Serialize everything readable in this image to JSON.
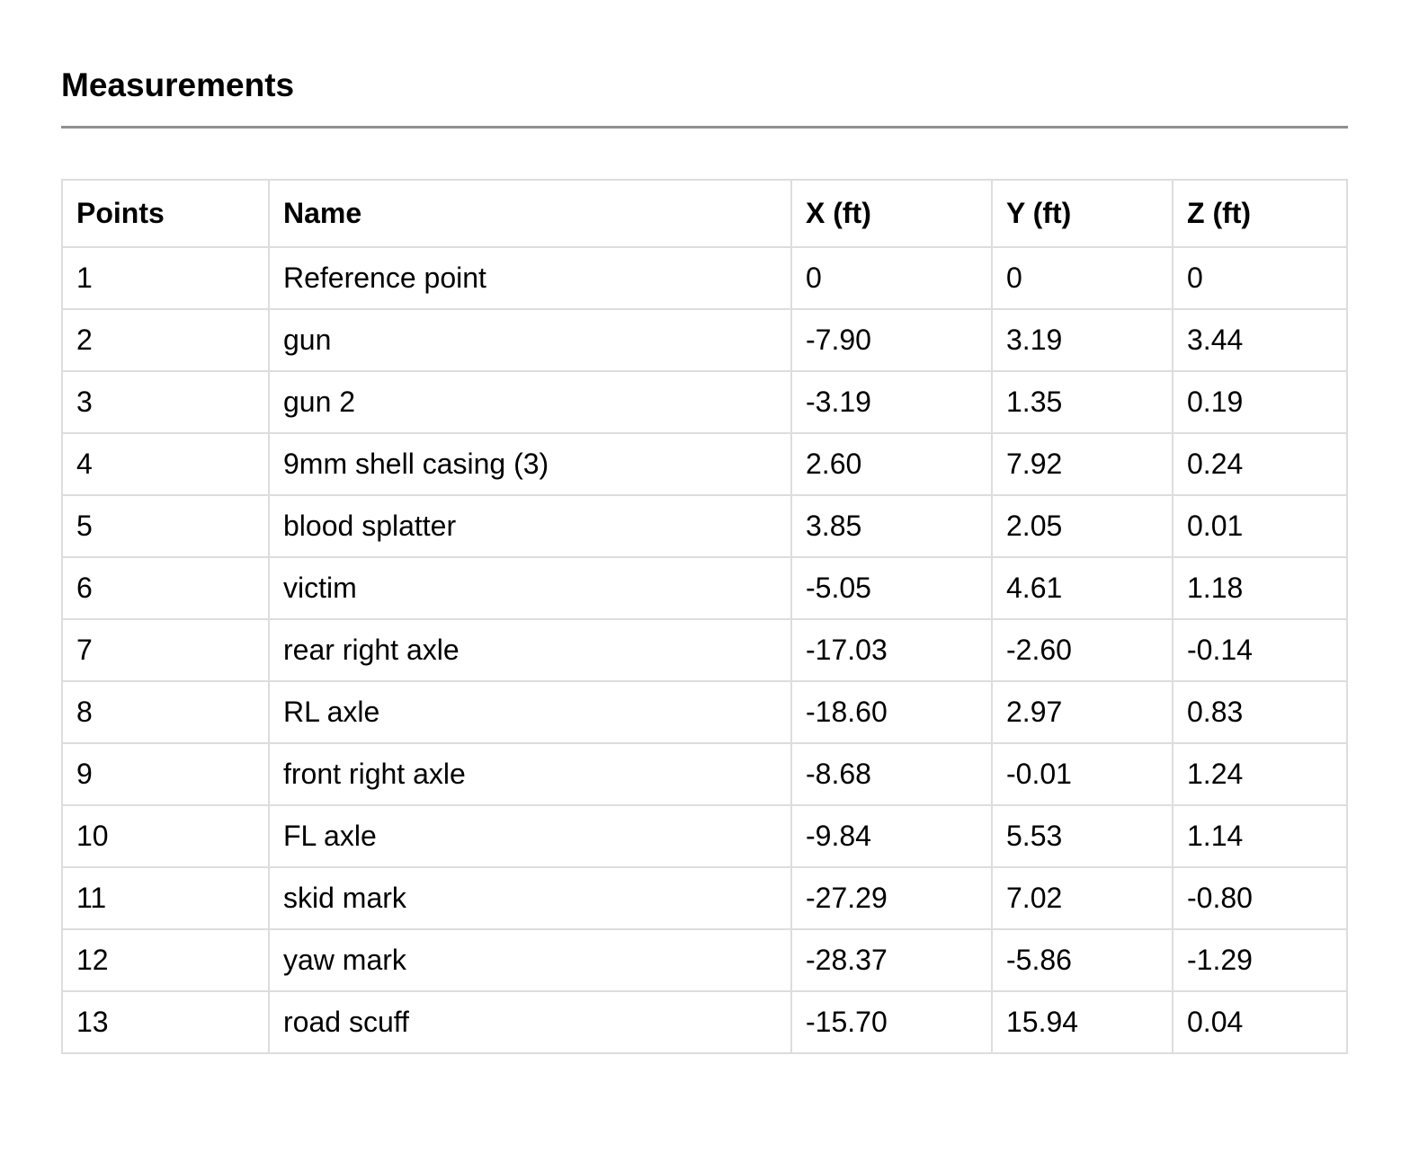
{
  "page": {
    "title": "Measurements"
  },
  "colors": {
    "border": "#dddddd",
    "rule": "#909090",
    "text": "#000000",
    "background": "#ffffff"
  },
  "table": {
    "columns": [
      "Points",
      "Name",
      "X (ft)",
      "Y (ft)",
      "Z (ft)"
    ],
    "column_keys": [
      "points",
      "name",
      "x",
      "y",
      "z"
    ],
    "rows": [
      [
        "1",
        "Reference point",
        "0",
        "0",
        "0"
      ],
      [
        "2",
        "gun",
        "-7.90",
        "3.19",
        "3.44"
      ],
      [
        "3",
        "gun 2",
        "-3.19",
        "1.35",
        "0.19"
      ],
      [
        "4",
        "9mm shell casing (3)",
        "2.60",
        "7.92",
        "0.24"
      ],
      [
        "5",
        "blood splatter",
        "3.85",
        "2.05",
        "0.01"
      ],
      [
        "6",
        "victim",
        "-5.05",
        "4.61",
        "1.18"
      ],
      [
        "7",
        "rear right axle",
        "-17.03",
        "-2.60",
        "-0.14"
      ],
      [
        "8",
        "RL axle",
        "-18.60",
        "2.97",
        "0.83"
      ],
      [
        "9",
        "front right axle",
        "-8.68",
        "-0.01",
        "1.24"
      ],
      [
        "10",
        "FL axle",
        "-9.84",
        "5.53",
        "1.14"
      ],
      [
        "11",
        "skid mark",
        "-27.29",
        "7.02",
        "-0.80"
      ],
      [
        "12",
        "yaw mark",
        "-28.37",
        "-5.86",
        "-1.29"
      ],
      [
        "13",
        "road scuff",
        "-15.70",
        "15.94",
        "0.04"
      ]
    ]
  }
}
